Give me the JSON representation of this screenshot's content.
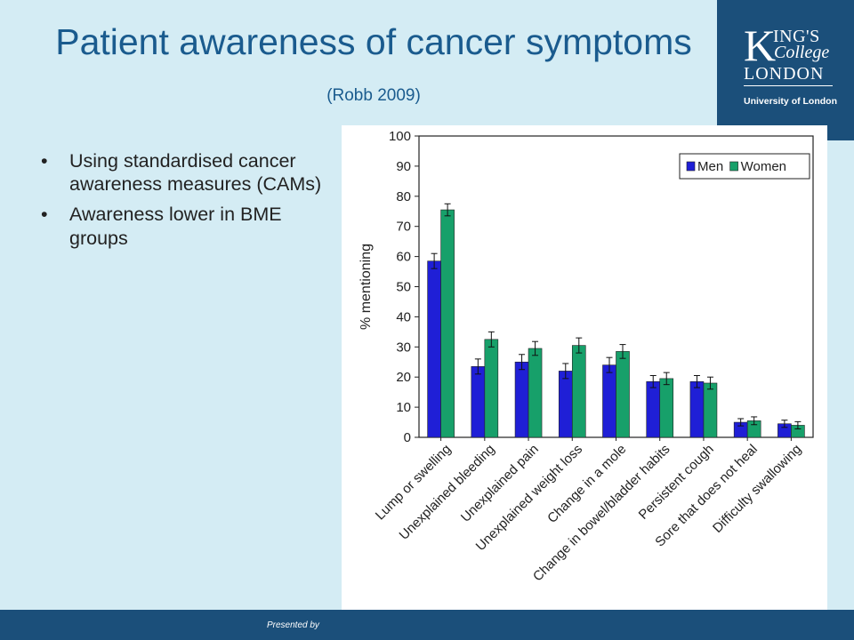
{
  "slide": {
    "title_main": "Patient awareness of cancer symptoms",
    "title_cite": "(Robb 2009)",
    "bullets": [
      "Using standardised cancer awareness measures (CAMs)",
      "Awareness lower in BME groups"
    ],
    "footer_text": "Presented by"
  },
  "logo": {
    "k": "K",
    "ings": "ING'S",
    "college": "College",
    "london": "LONDON",
    "university": "University of London"
  },
  "chart_data": {
    "type": "bar",
    "ylabel": "% mentioning",
    "ylim": [
      0,
      100
    ],
    "yticks": [
      0,
      10,
      20,
      30,
      40,
      50,
      60,
      70,
      80,
      90,
      100
    ],
    "legend_position": "top-right",
    "error_bars": true,
    "categories": [
      "Lump or swelling",
      "Unexplained bleeding",
      "Unexplained pain",
      "Unexplained weight loss",
      "Change in a mole",
      "Change in bowel/bladder habits",
      "Persistent cough",
      "Sore that does not heal",
      "Difficulty swallowing"
    ],
    "series": [
      {
        "name": "Men",
        "color": "#1f1fd6",
        "values": [
          58.5,
          23.5,
          25,
          22,
          24,
          18.5,
          18.5,
          5,
          4.5
        ],
        "errors": [
          2.5,
          2.5,
          2.5,
          2.5,
          2.5,
          2,
          2,
          1.2,
          1.2
        ]
      },
      {
        "name": "Women",
        "color": "#17a06a",
        "values": [
          75.5,
          32.5,
          29.5,
          30.5,
          28.5,
          19.5,
          18,
          5.5,
          4
        ],
        "errors": [
          2,
          2.5,
          2.3,
          2.5,
          2.3,
          2,
          2,
          1.3,
          1.2
        ]
      }
    ]
  }
}
